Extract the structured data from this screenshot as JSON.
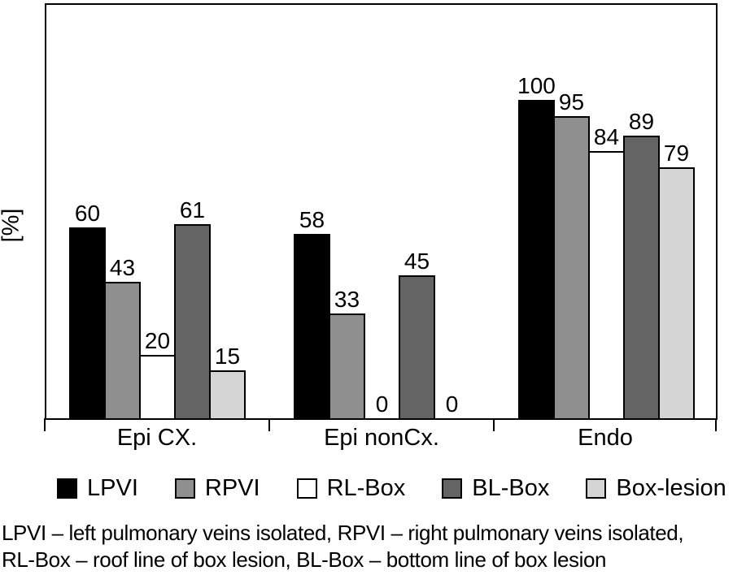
{
  "chart_data": {
    "type": "bar",
    "title": "",
    "ylabel": "[%]",
    "xlabel": "",
    "ylim": [
      0,
      130
    ],
    "grid": false,
    "legend_position": "bottom",
    "value_labels": true,
    "categories": [
      "Epi CX.",
      "Epi nonCx.",
      "Endo"
    ],
    "series": [
      {
        "name": "LPVI",
        "color": "#000000",
        "values": [
          60,
          58,
          100
        ]
      },
      {
        "name": "RPVI",
        "color": "#8f8f8f",
        "values": [
          43,
          33,
          95
        ]
      },
      {
        "name": "RL-Box",
        "color": "#ffffff",
        "values": [
          20,
          0,
          84
        ]
      },
      {
        "name": "BL-Box",
        "color": "#646464",
        "values": [
          61,
          45,
          89
        ]
      },
      {
        "name": "Box-lesion",
        "color": "#d5d5d5",
        "values": [
          15,
          0,
          79
        ]
      }
    ]
  },
  "caption": {
    "line1": "LPVI – left pulmonary veins isolated, RPVI – right pulmonary veins isolated,",
    "line2": "RL-Box – roof line of box lesion, BL-Box – bottom line of box lesion"
  }
}
